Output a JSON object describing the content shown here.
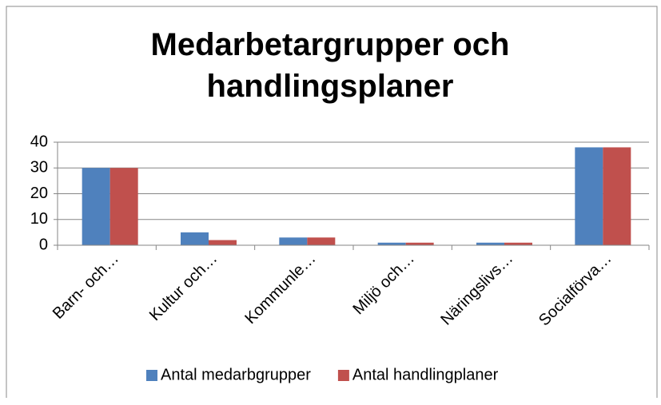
{
  "chart_data": {
    "type": "bar",
    "title": "Medarbetargrupper och handlingsplaner",
    "categories": [
      "Barn- och…",
      "Kultur och…",
      "Kommunle…",
      "Miljö och…",
      "Näringslivs…",
      "Socialförva…"
    ],
    "series": [
      {
        "name": "Antal medarbgrupper",
        "color": "#4f81bd",
        "values": [
          30,
          5,
          3,
          1,
          1,
          38
        ]
      },
      {
        "name": "Antal handlingplaner",
        "color": "#c0504d",
        "values": [
          30,
          2,
          3,
          1,
          1,
          38
        ]
      }
    ],
    "ylim": [
      0,
      40
    ],
    "yticks": [
      0,
      10,
      20,
      30,
      40
    ],
    "grid": true,
    "legend": "bottom"
  }
}
